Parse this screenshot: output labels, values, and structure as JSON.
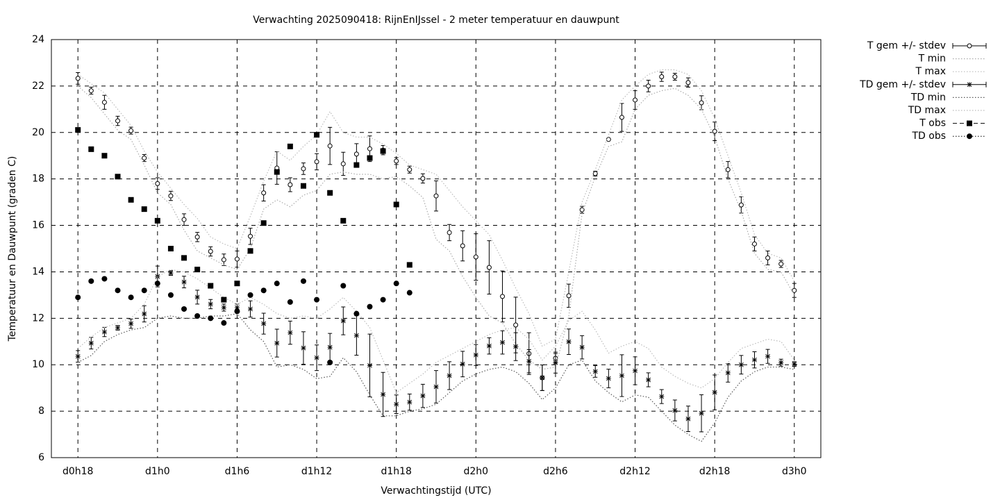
{
  "chart_data": {
    "type": "line",
    "title": "Verwachting 2025090418: RijnEnIJssel - 2 meter temperatuur en dauwpunt",
    "x_label": "Verwachtingstijd (UTC)",
    "y_label": "Temperatuur en Dauwpunt (graden C)",
    "x": [
      18,
      19,
      20,
      21,
      22,
      23,
      24,
      25,
      26,
      27,
      28,
      29,
      30,
      31,
      32,
      33,
      34,
      35,
      36,
      37,
      38,
      39,
      40,
      41,
      42,
      43,
      44,
      45,
      46,
      47,
      48,
      49,
      50,
      51,
      52,
      53,
      54,
      55,
      56,
      57,
      58,
      59,
      60,
      61,
      62,
      63,
      64,
      65,
      66,
      67,
      68,
      69,
      70,
      71,
      72
    ],
    "xlim": [
      16,
      74
    ],
    "xticks": [
      {
        "value": 18,
        "label": "d0h18"
      },
      {
        "value": 24,
        "label": "d1h0"
      },
      {
        "value": 30,
        "label": "d1h6"
      },
      {
        "value": 36,
        "label": "d1h12"
      },
      {
        "value": 42,
        "label": "d1h18"
      },
      {
        "value": 48,
        "label": "d2h0"
      },
      {
        "value": 54,
        "label": "d2h6"
      },
      {
        "value": 60,
        "label": "d2h12"
      },
      {
        "value": 66,
        "label": "d2h18"
      },
      {
        "value": 72,
        "label": "d3h0"
      }
    ],
    "ylim": [
      6,
      24
    ],
    "yticks": [
      6,
      8,
      10,
      12,
      14,
      16,
      18,
      20,
      22,
      24
    ],
    "grid": true,
    "legend": "outside-top-right",
    "series": [
      {
        "name": "T gem +/- stdev",
        "style": "errorbar-open-circle",
        "color": "#000000",
        "values": [
          22.33,
          21.8,
          21.3,
          20.5,
          20.08,
          18.9,
          17.8,
          17.27,
          16.25,
          15.5,
          14.88,
          14.52,
          14.55,
          15.53,
          17.4,
          18.47,
          17.75,
          18.44,
          18.74,
          19.42,
          18.65,
          19.07,
          19.3,
          19.24,
          18.77,
          18.4,
          18.02,
          17.27,
          15.69,
          15.12,
          14.64,
          14.19,
          12.94,
          11.71,
          10.48,
          9.44,
          10.28,
          12.97,
          16.67,
          18.23,
          19.7,
          20.65,
          21.4,
          22.0,
          22.4,
          22.4,
          22.15,
          21.28,
          20.05,
          18.4,
          16.88,
          15.2,
          14.6,
          14.34,
          13.2
        ],
        "stdev": [
          0.25,
          0.15,
          0.3,
          0.2,
          0.15,
          0.15,
          0.25,
          0.2,
          0.25,
          0.2,
          0.2,
          0.25,
          0.35,
          0.35,
          0.35,
          0.7,
          0.3,
          0.25,
          0.35,
          0.8,
          0.5,
          0.45,
          0.55,
          0.2,
          0.15,
          0.15,
          0.2,
          0.65,
          0.35,
          0.65,
          1.0,
          1.15,
          1.1,
          1.2,
          0.9,
          0.55,
          0.2,
          0.5,
          0.15,
          0.1,
          0,
          0.6,
          0.4,
          0.25,
          0.2,
          0.15,
          0.2,
          0.3,
          0.4,
          0.35,
          0.35,
          0.3,
          0.3,
          0.15,
          0.3
        ]
      },
      {
        "name": "T min",
        "style": "dotted",
        "color": "#aaaaaa",
        "values": [
          22.0,
          21.5,
          20.8,
          20.1,
          19.7,
          18.6,
          17.4,
          16.9,
          15.8,
          14.9,
          14.6,
          14.3,
          14.1,
          15.0,
          16.7,
          17.1,
          16.8,
          17.3,
          17.5,
          18.2,
          18.3,
          18.2,
          18.2,
          18.0,
          18.1,
          17.7,
          17.2,
          15.4,
          14.9,
          13.8,
          12.9,
          12.1,
          11.8,
          10.9,
          10.2,
          9.8,
          9.9,
          12.1,
          16.5,
          18.1,
          19.4,
          19.6,
          21.0,
          21.6,
          21.8,
          21.9,
          21.6,
          21.0,
          19.8,
          18.0,
          16.6,
          14.8,
          14.1,
          14.0,
          13.0
        ]
      },
      {
        "name": "T max",
        "style": "dotted",
        "color": "#bbbbbb",
        "values": [
          22.5,
          22.1,
          21.7,
          21.0,
          20.3,
          19.2,
          18.3,
          17.6,
          16.9,
          16.3,
          15.5,
          15.2,
          15.0,
          16.4,
          17.9,
          19.2,
          18.8,
          19.4,
          19.9,
          20.9,
          20.0,
          19.8,
          19.8,
          19.5,
          19.1,
          18.6,
          18.4,
          18.2,
          17.5,
          16.8,
          16.2,
          15.6,
          14.5,
          13.3,
          12.2,
          10.8,
          11.1,
          14.0,
          17.0,
          18.4,
          19.9,
          21.4,
          22.0,
          22.5,
          22.7,
          22.7,
          22.5,
          21.8,
          20.6,
          19.0,
          17.4,
          15.6,
          14.8,
          14.6,
          13.6
        ]
      },
      {
        "name": "TD gem +/- stdev",
        "style": "errorbar-star",
        "color": "#000000",
        "values": [
          10.36,
          10.93,
          11.41,
          11.59,
          11.77,
          12.19,
          13.8,
          13.95,
          13.56,
          12.91,
          12.61,
          12.46,
          12.46,
          12.4,
          11.77,
          10.93,
          11.38,
          10.72,
          10.3,
          10.75,
          11.89,
          11.26,
          9.97,
          8.72,
          8.3,
          8.39,
          8.66,
          9.05,
          9.53,
          10.03,
          10.42,
          10.81,
          10.96,
          10.78,
          10.15,
          9.44,
          10.09,
          10.99,
          10.75,
          9.71,
          9.41,
          9.53,
          9.74,
          9.35,
          8.63,
          8.03,
          7.67,
          7.91,
          8.81,
          9.65,
          10.0,
          10.21,
          10.36,
          10.09,
          10.03
        ],
        "stdev": [
          0.25,
          0.25,
          0.2,
          0.1,
          0.2,
          0.35,
          0.45,
          0.1,
          0.25,
          0.3,
          0.2,
          0.15,
          0.15,
          0.35,
          0.45,
          0.6,
          0.5,
          0.7,
          0.55,
          0.6,
          0.6,
          0.85,
          1.35,
          0.95,
          0.4,
          0.35,
          0.5,
          0.7,
          0.6,
          0.55,
          0.45,
          0.35,
          0.5,
          0.6,
          0.5,
          0.55,
          0.45,
          0.55,
          0.5,
          0.25,
          0.4,
          0.9,
          0.6,
          0.3,
          0.3,
          0.45,
          0.55,
          0.8,
          0.75,
          0.4,
          0.4,
          0.35,
          0.3,
          0.15,
          0.1
        ]
      },
      {
        "name": "TD min",
        "style": "dotted",
        "color": "#555555",
        "values": [
          10.1,
          10.4,
          11.0,
          11.3,
          11.5,
          11.6,
          12.0,
          12.1,
          12.0,
          12.0,
          12.1,
          12.1,
          12.2,
          11.5,
          11.0,
          9.9,
          10.0,
          9.8,
          9.4,
          9.5,
          10.3,
          9.7,
          8.7,
          7.8,
          7.8,
          8.0,
          8.1,
          8.3,
          8.8,
          9.3,
          9.6,
          9.8,
          9.9,
          9.7,
          9.2,
          8.5,
          9.0,
          10.0,
          10.2,
          9.3,
          8.8,
          8.4,
          8.7,
          8.6,
          8.0,
          7.4,
          7.0,
          6.7,
          7.5,
          8.6,
          9.3,
          9.7,
          9.9,
          9.9,
          9.8
        ]
      },
      {
        "name": "TD max",
        "style": "dotted",
        "color": "#bbbbbb",
        "values": [
          10.7,
          11.2,
          11.6,
          11.8,
          12.0,
          12.6,
          13.8,
          14.1,
          14.0,
          13.7,
          13.3,
          12.9,
          12.6,
          12.9,
          12.6,
          12.2,
          12.0,
          12.1,
          12.0,
          12.4,
          12.9,
          12.3,
          11.6,
          10.2,
          8.8,
          9.2,
          9.6,
          10.1,
          10.4,
          10.7,
          11.0,
          11.3,
          11.5,
          11.6,
          11.1,
          10.2,
          10.8,
          11.9,
          12.3,
          11.5,
          10.5,
          10.8,
          11.0,
          10.7,
          9.9,
          9.5,
          9.2,
          9.0,
          9.4,
          10.1,
          10.7,
          10.9,
          11.1,
          11.0,
          10.2
        ]
      },
      {
        "name": "T obs",
        "style": "square",
        "color": "#000000",
        "values": [
          20.11,
          19.28,
          19.0,
          18.1,
          17.1,
          16.7,
          16.2,
          15.0,
          14.6,
          14.1,
          13.4,
          12.8,
          13.5,
          14.9,
          16.1,
          18.3,
          19.4,
          17.7,
          19.9,
          17.4,
          16.2,
          18.6,
          18.9,
          19.2,
          16.9,
          14.3,
          null,
          null,
          null,
          null,
          null,
          null,
          null,
          null,
          null,
          null,
          null,
          null,
          null,
          null,
          null,
          null,
          null,
          null,
          null,
          null,
          null,
          null,
          null,
          null,
          null,
          null,
          null,
          null,
          null
        ]
      },
      {
        "name": "TD obs",
        "style": "dot",
        "color": "#000000",
        "values": [
          12.9,
          13.6,
          13.7,
          13.2,
          12.9,
          13.2,
          13.5,
          13.0,
          12.4,
          12.1,
          12.0,
          11.8,
          12.3,
          13.0,
          13.2,
          13.5,
          12.7,
          13.6,
          12.8,
          10.1,
          13.4,
          12.2,
          12.5,
          12.8,
          13.5,
          13.1,
          null,
          null,
          null,
          null,
          null,
          null,
          null,
          null,
          null,
          null,
          null,
          null,
          null,
          null,
          null,
          null,
          null,
          null,
          null,
          null,
          null,
          null,
          null,
          null,
          null,
          null,
          null,
          null,
          null
        ]
      }
    ]
  }
}
